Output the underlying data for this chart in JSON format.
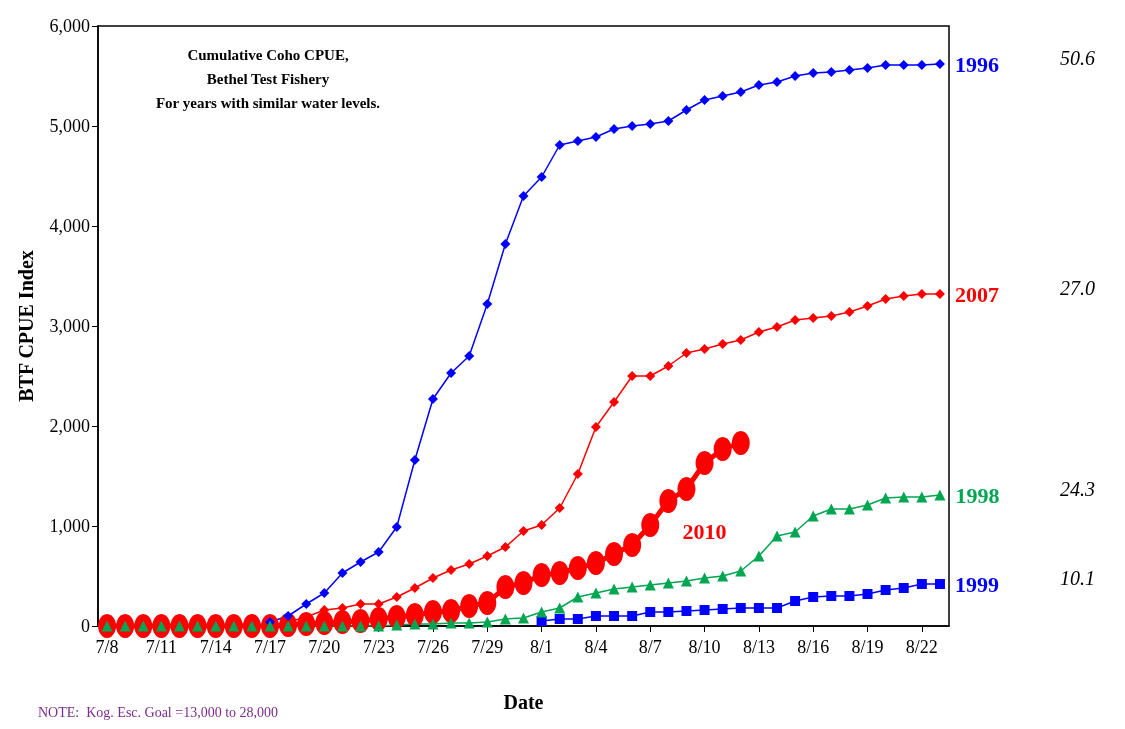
{
  "chart_data": {
    "type": "line",
    "title": "Cumulative Coho CPUE,\nBethel Test Fishery\nFor years with similar water levels.",
    "xlabel": "Date",
    "ylabel": "BTF CPUE Index",
    "categories": [
      "7/8",
      null,
      null,
      "7/11",
      null,
      null,
      "7/14",
      null,
      null,
      "7/17",
      null,
      null,
      "7/20",
      null,
      null,
      "7/23",
      null,
      null,
      "7/26",
      null,
      null,
      "7/29",
      null,
      null,
      "8/1",
      null,
      null,
      "8/4",
      null,
      null,
      "8/7",
      null,
      null,
      "8/10",
      null,
      null,
      "8/13",
      null,
      null,
      "8/16",
      null,
      null,
      "8/19",
      null,
      null,
      "8/22",
      null
    ],
    "ylim": [
      0,
      6000
    ],
    "yticks": [
      0,
      {
        "value": 1000,
        "label": "1,000"
      },
      {
        "value": 2000,
        "label": "2,000"
      },
      {
        "value": 3000,
        "label": "3,000"
      },
      {
        "value": 4000,
        "label": "4,000"
      },
      {
        "value": 5000,
        "label": "5,000"
      },
      {
        "value": 6000,
        "label": "6,000"
      }
    ],
    "grid": false,
    "series": [
      {
        "name": "1999",
        "color": "#0000ff",
        "marker": "square",
        "values": [
          null,
          null,
          null,
          null,
          null,
          null,
          null,
          null,
          null,
          null,
          null,
          null,
          null,
          null,
          null,
          null,
          null,
          null,
          null,
          null,
          null,
          null,
          null,
          null,
          50,
          70,
          70,
          100,
          100,
          100,
          140,
          140,
          150,
          160,
          170,
          180,
          180,
          180,
          250,
          290,
          300,
          300,
          320,
          360,
          380,
          420,
          420
        ]
      },
      {
        "name": "2010",
        "color": "#ff0000",
        "marker": "circle",
        "values": [
          0,
          0,
          0,
          0,
          0,
          0,
          0,
          0,
          0,
          0,
          10,
          20,
          30,
          40,
          50,
          70,
          90,
          110,
          140,
          150,
          200,
          230,
          390,
          430,
          510,
          530,
          580,
          630,
          720,
          810,
          1010,
          1250,
          1370,
          1630,
          1770,
          1830,
          null,
          null,
          null,
          null,
          null,
          null,
          null,
          null,
          null,
          null,
          null
        ]
      },
      {
        "name": "2007",
        "color": "#ff0000",
        "marker": "diamond",
        "values": [
          null,
          null,
          null,
          null,
          null,
          null,
          null,
          null,
          null,
          null,
          40,
          90,
          160,
          180,
          220,
          220,
          290,
          380,
          480,
          560,
          620,
          700,
          790,
          950,
          1010,
          1180,
          1520,
          1990,
          2240,
          2500,
          2500,
          2600,
          2730,
          2770,
          2820,
          2860,
          2940,
          2990,
          3060,
          3080,
          3100,
          3140,
          3200,
          3270,
          3300,
          3320,
          3320
        ]
      },
      {
        "name": "1996",
        "color": "#0000ff",
        "marker": "diamond",
        "values": [
          null,
          null,
          null,
          null,
          null,
          null,
          null,
          null,
          null,
          40,
          100,
          220,
          330,
          530,
          640,
          740,
          990,
          1660,
          2270,
          2530,
          2700,
          3220,
          3820,
          4300,
          4490,
          4810,
          4850,
          4890,
          4970,
          5000,
          5020,
          5050,
          5160,
          5260,
          5300,
          5340,
          5410,
          5440,
          5500,
          5530,
          5540,
          5560,
          5580,
          5610,
          5610,
          5610,
          5620
        ]
      },
      {
        "name": "1998",
        "color": "#00a651",
        "marker": "triangle",
        "values": [
          0,
          0,
          0,
          0,
          0,
          0,
          0,
          0,
          0,
          0,
          0,
          0,
          0,
          0,
          0,
          0,
          10,
          20,
          20,
          30,
          30,
          40,
          70,
          80,
          140,
          180,
          290,
          330,
          370,
          390,
          410,
          430,
          450,
          480,
          500,
          550,
          700,
          900,
          940,
          1100,
          1170,
          1170,
          1210,
          1280,
          1290,
          1290,
          1310
        ]
      }
    ],
    "annotations": [
      "50.6",
      "27.0",
      "24.3",
      "10.1",
      "NOTE:  Kog. Esc. Goal =13,000 to 28,000"
    ]
  }
}
